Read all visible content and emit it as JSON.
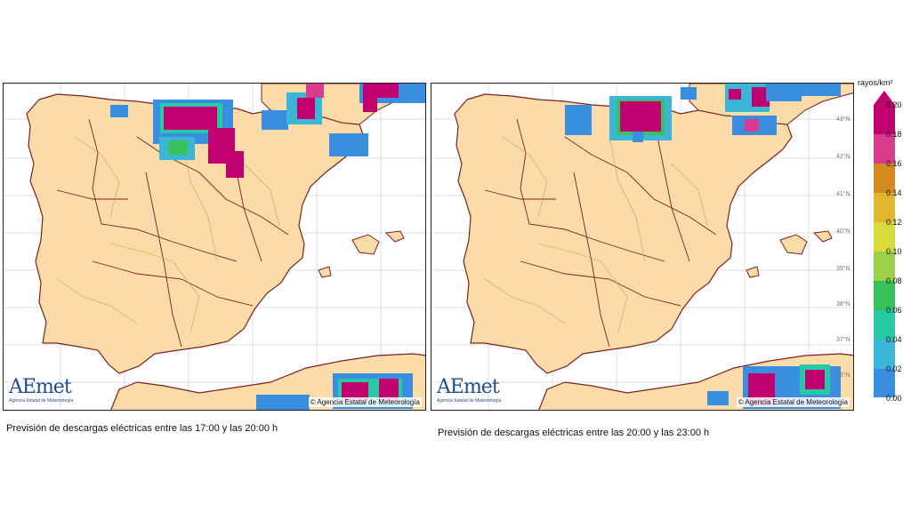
{
  "maps": [
    {
      "id": "left",
      "caption": "Previsión de descargas eléctricas entre las 17:00 y las 20:00 h",
      "copyright": "© Agencia Estatal de Meteorología",
      "logo": "AEmet",
      "logo_sub": "Agencia Estatal de Meteorología"
    },
    {
      "id": "right",
      "caption": "Previsión de descargas eléctricas entre las  20:00 y las 23:00 h",
      "copyright": "© Agencia Estatal de Meteorología",
      "logo": "AEmet",
      "logo_sub": "Agencia Estatal de Meteorología"
    }
  ],
  "legend": {
    "title": "rayos/km²",
    "ticks": [
      "0.20",
      "0.18",
      "0.16",
      "0.14",
      "0.12",
      "0.10",
      "0.08",
      "0.06",
      "0.04",
      "0.02",
      "0.00"
    ],
    "colors": [
      "#c0006f",
      "#d83c8c",
      "#d58a1f",
      "#e0b72f",
      "#d8dc3a",
      "#9bd04a",
      "#38c25b",
      "#29c9a6",
      "#3ab7d8",
      "#3a8ee0"
    ]
  },
  "latitudes": [
    "43°N",
    "42°N",
    "41°N",
    "40°N",
    "39°N",
    "38°N",
    "37°N",
    "36°N"
  ],
  "colors": {
    "land": "#fbdca8",
    "sea": "#ffffff",
    "border": "#7a2020",
    "province": "#c9a441",
    "grid": "#c8c8c8"
  }
}
